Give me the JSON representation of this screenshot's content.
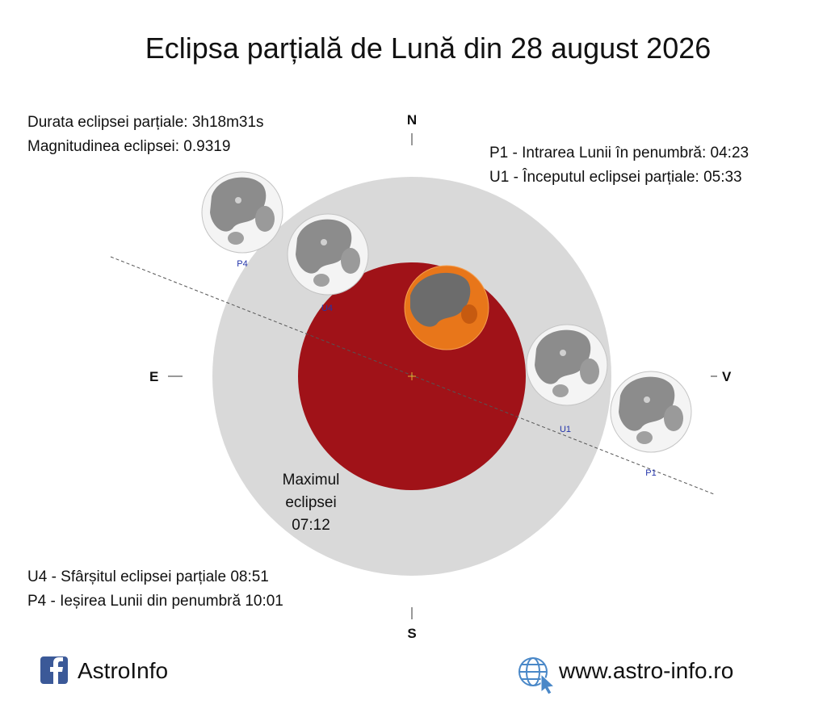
{
  "title": "Eclipsa parțială de Lună din 28 august 2026",
  "info": {
    "duration": "Durata eclipsei parțiale: 3h18m31s",
    "magnitude": "Magnitudinea eclipsei: 0.9319"
  },
  "contacts": {
    "p1": "P1 - Intrarea Lunii în penumbră: 04:23",
    "u1": "U1 - Începutul eclipsei parțiale: 05:33",
    "u4": "U4 - Sfârșitul eclipsei parțiale 08:51",
    "p4": "P4 - Ieșirea Lunii din penumbră 10:01"
  },
  "maximum": [
    "Maximul",
    "eclipsei",
    "07:12"
  ],
  "compass": {
    "north": "N",
    "south": "S",
    "east": "E",
    "west": "V"
  },
  "moon_labels": {
    "p4": "P4",
    "u4": "U4",
    "u1": "U1",
    "p1": "P1"
  },
  "footer": {
    "facebook": "AstroInfo",
    "website": "www.astro-info.ro"
  }
}
